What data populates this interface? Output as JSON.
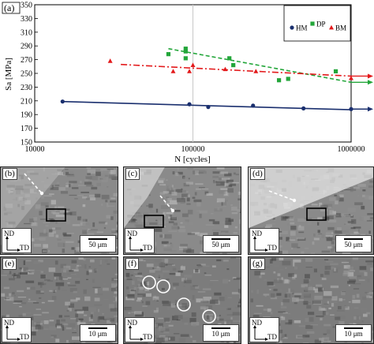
{
  "chart_data": {
    "type": "scatter",
    "panel_label": "(a)",
    "xlabel": "N [cycles]",
    "ylabel": "Sa [MPa]",
    "xscale": "log",
    "xlim": [
      10000,
      1000000
    ],
    "ylim": [
      150,
      350
    ],
    "xticks": [
      "10000",
      "100000",
      "1000000"
    ],
    "yticks": [
      "150",
      "170",
      "190",
      "210",
      "230",
      "250",
      "270",
      "290",
      "310",
      "330",
      "350"
    ],
    "grid": "vertical at decades",
    "legend": "top-right",
    "series": [
      {
        "name": "HM",
        "color": "#1a2f6e",
        "marker": "circle",
        "line": "solid",
        "x": [
          15000,
          95000,
          125000,
          240000,
          500000,
          1000000
        ],
        "y": [
          209,
          205,
          201,
          203,
          199,
          198
        ],
        "fit": [
          [
            15000,
            209
          ],
          [
            1000000,
            197
          ]
        ]
      },
      {
        "name": "DP",
        "color": "#23a63a",
        "marker": "square",
        "line": "dashed",
        "x": [
          90000,
          90000,
          70000,
          90000,
          170000,
          180000,
          350000,
          400000,
          800000
        ],
        "y": [
          286,
          282,
          278,
          272,
          272,
          262,
          240,
          242,
          253
        ],
        "fit": [
          [
            70000,
            286
          ],
          [
            1000000,
            237
          ]
        ]
      },
      {
        "name": "BM",
        "color": "#e31a1c",
        "marker": "triangle",
        "line": "dashdot",
        "x": [
          30000,
          75000,
          95000,
          100000,
          160000,
          250000,
          1000000
        ],
        "y": [
          268,
          253,
          253,
          262,
          256,
          253,
          243
        ],
        "fit": [
          [
            35000,
            263
          ],
          [
            1000000,
            246
          ]
        ]
      }
    ],
    "runouts": [
      {
        "series": "HM",
        "y": 198
      },
      {
        "series": "DP",
        "y": 237
      },
      {
        "series": "BM",
        "y": 246
      }
    ]
  },
  "micrographs": [
    {
      "label": "(b)",
      "scale": "50 μm",
      "nd": "ND",
      "td": "TD"
    },
    {
      "label": "(c)",
      "scale": "50 μm",
      "nd": "ND",
      "td": "TD"
    },
    {
      "label": "(d)",
      "scale": "50 μm",
      "nd": "ND",
      "td": "TD"
    },
    {
      "label": "(e)",
      "scale": "10 μm",
      "nd": "ND",
      "td": "TD"
    },
    {
      "label": "(f)",
      "scale": "10 μm",
      "nd": "ND",
      "td": "TD"
    },
    {
      "label": "(g)",
      "scale": "10 μm",
      "nd": "ND",
      "td": "TD"
    }
  ]
}
